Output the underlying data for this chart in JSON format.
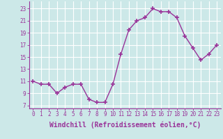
{
  "x": [
    0,
    1,
    2,
    3,
    4,
    5,
    6,
    7,
    8,
    9,
    10,
    11,
    12,
    13,
    14,
    15,
    16,
    17,
    18,
    19,
    20,
    21,
    22,
    23
  ],
  "y": [
    11,
    10.5,
    10.5,
    9,
    10,
    10.5,
    10.5,
    8,
    7.5,
    7.5,
    10.5,
    15.5,
    19.5,
    21,
    21.5,
    23,
    22.5,
    22.5,
    21.5,
    18.5,
    16.5,
    14.5,
    15.5,
    17
  ],
  "line_color": "#993399",
  "marker": "+",
  "marker_size": 4,
  "marker_linewidth": 1.2,
  "xlabel": "Windchill (Refroidissement éolien,°C)",
  "xlabel_fontsize": 7,
  "ylabel_ticks": [
    7,
    9,
    11,
    13,
    15,
    17,
    19,
    21,
    23
  ],
  "ylim": [
    6.5,
    24.2
  ],
  "xlim": [
    -0.5,
    23.5
  ],
  "xticks": [
    0,
    1,
    2,
    3,
    4,
    5,
    6,
    7,
    8,
    9,
    10,
    11,
    12,
    13,
    14,
    15,
    16,
    17,
    18,
    19,
    20,
    21,
    22,
    23
  ],
  "background_color": "#cce8e8",
  "grid_color": "#b8d8d8",
  "tick_color": "#993399",
  "tick_fontsize": 5.5,
  "line_width": 1.0
}
